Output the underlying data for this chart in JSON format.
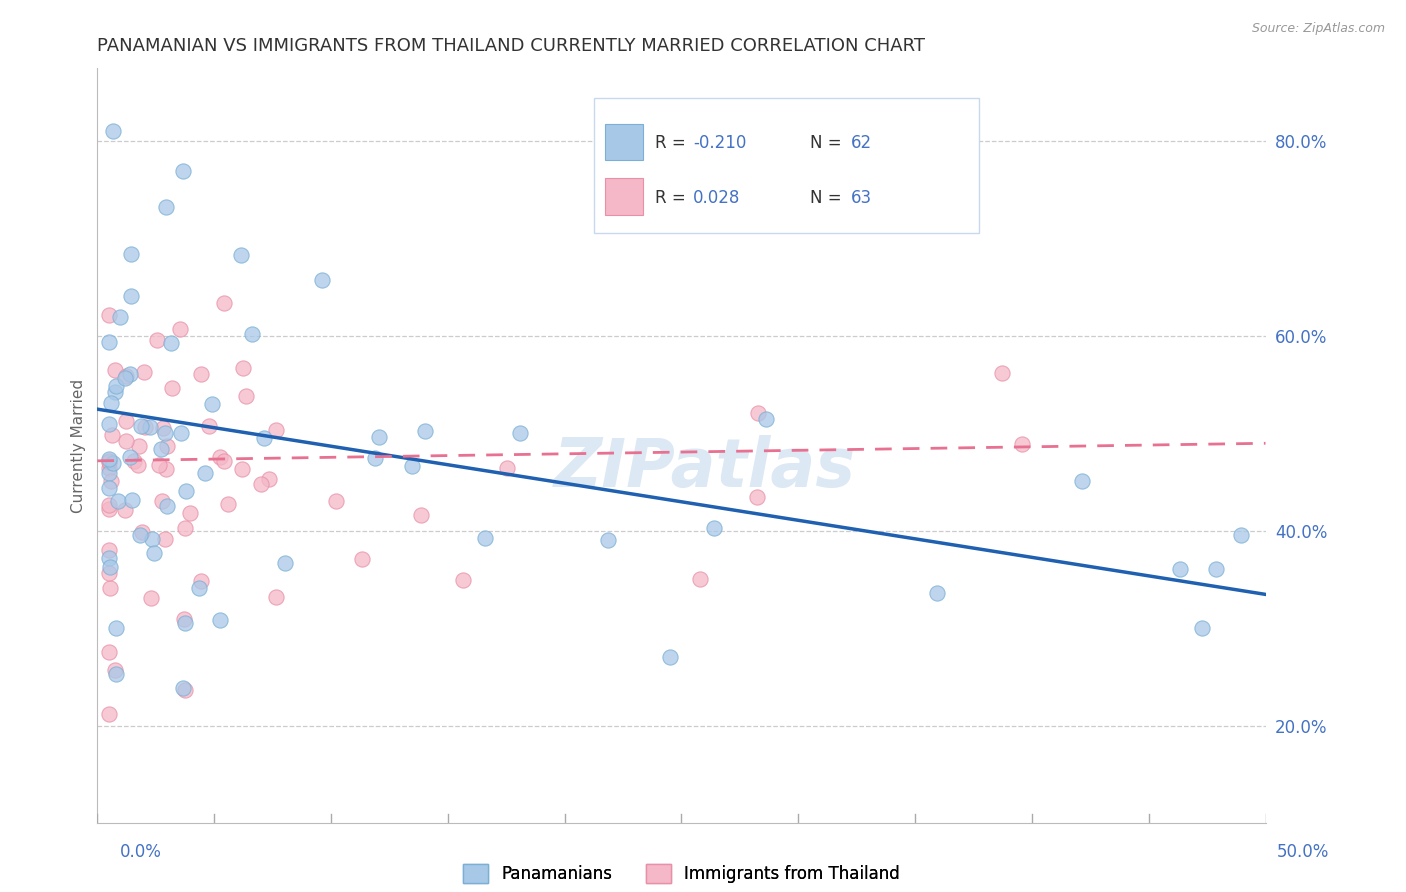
{
  "title": "PANAMANIAN VS IMMIGRANTS FROM THAILAND CURRENTLY MARRIED CORRELATION CHART",
  "source": "Source: ZipAtlas.com",
  "ylabel": "Currently Married",
  "xmin": 0.0,
  "xmax": 0.5,
  "ymin": 0.1,
  "ymax": 0.875,
  "blue_color": "#a8c8e8",
  "blue_edge_color": "#7bafd4",
  "pink_color": "#f4b8c8",
  "pink_edge_color": "#e890a8",
  "blue_line_color": "#2060b0",
  "pink_line_color": "#e87090",
  "blue_line_y0": 0.525,
  "blue_line_y1": 0.335,
  "pink_line_y0": 0.472,
  "pink_line_y1": 0.49,
  "ytick_right": [
    0.2,
    0.4,
    0.6,
    0.8
  ],
  "ytick_right_labels": [
    "20.0%",
    "40.0%",
    "60.0%",
    "80.0%"
  ],
  "grid_color": "#cccccc",
  "bg_color": "#ffffff",
  "title_color": "#333333",
  "axis_color": "#4472c4",
  "watermark_color": "#dce8f4",
  "legend_box_color": "#f0f4ff",
  "legend_border_color": "#c8d8f0"
}
